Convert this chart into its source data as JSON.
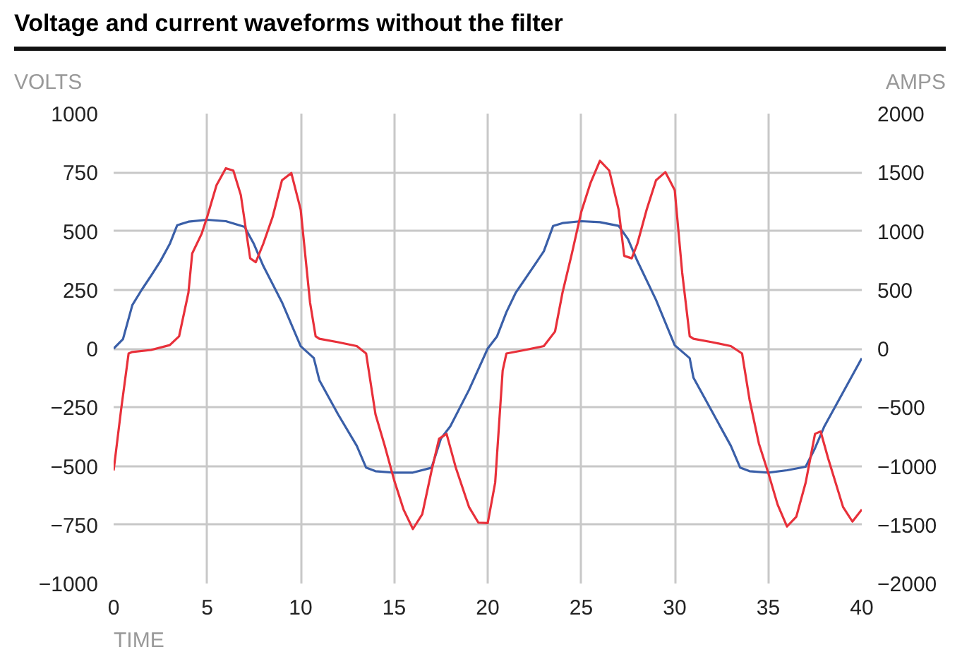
{
  "chart_data": {
    "type": "line",
    "title": "Voltage and current waveforms without the filter",
    "xlabel": "TIME",
    "ylabel": "VOLTS",
    "y2label": "AMPS",
    "xlim": [
      0,
      40
    ],
    "xticks": [
      0,
      5,
      10,
      15,
      20,
      25,
      30,
      35,
      40
    ],
    "ylim": [
      -1000,
      1000
    ],
    "yticks": [
      -1000,
      -750,
      -500,
      -250,
      0,
      250,
      500,
      750,
      1000
    ],
    "y2lim": [
      -2000,
      2000
    ],
    "y2ticks": [
      -2000,
      -1500,
      -1000,
      -500,
      0,
      500,
      1000,
      1500,
      2000
    ],
    "grid": true,
    "line_style": "solid",
    "marker": "none",
    "series": [
      {
        "color": "#3a5fa8",
        "x": [
          0,
          0.5,
          1,
          1.5,
          2,
          2.5,
          3,
          3.4,
          4,
          5,
          6,
          7,
          7.5,
          8,
          9,
          10,
          10.7,
          11,
          12,
          13,
          13.5,
          14,
          15,
          16,
          17,
          17.5,
          18,
          19,
          20,
          20.5,
          21,
          21.5,
          22,
          23,
          23.5,
          24,
          25,
          26,
          27,
          27.5,
          28,
          29,
          30,
          30.8,
          31,
          32,
          33,
          33.5,
          34,
          35,
          36,
          37,
          37.5,
          38,
          39,
          40
        ],
        "values": [
          0,
          40,
          185,
          250,
          310,
          372,
          445,
          525,
          540,
          548,
          542,
          518,
          445,
          352,
          197,
          10,
          -40,
          -135,
          -280,
          -414,
          -507,
          -522,
          -528,
          -528,
          -507,
          -383,
          -331,
          -176,
          0,
          52,
          155,
          238,
          296,
          414,
          522,
          534,
          542,
          538,
          522,
          466,
          373,
          207,
          14,
          -41,
          -124,
          -269,
          -414,
          -507,
          -522,
          -528,
          -518,
          -503,
          -424,
          -331,
          -186,
          -41
        ]
      },
      {
        "color": "#e8303a",
        "axis": "y2",
        "x": [
          0,
          0.4,
          0.8,
          1,
          2,
          3,
          3.5,
          4,
          4.2,
          4.7,
          5,
          5.5,
          6,
          6.4,
          6.8,
          7.3,
          7.6,
          8,
          8.5,
          9,
          9.5,
          10,
          10.5,
          10.8,
          11,
          12,
          13,
          13.5,
          14,
          14.5,
          15,
          15.5,
          16,
          16.5,
          17,
          17.4,
          17.8,
          18.3,
          19,
          19.5,
          20,
          20.4,
          20.8,
          21,
          22,
          23,
          23.6,
          24,
          24.5,
          25,
          25.5,
          26,
          26.5,
          27,
          27.3,
          27.7,
          28,
          28.5,
          29,
          29.5,
          30,
          30.4,
          30.8,
          31,
          32,
          33,
          33.6,
          34,
          34.5,
          35,
          35.5,
          36,
          36.5,
          37,
          37.5,
          37.8,
          38.2,
          39,
          39.5,
          40
        ],
        "values": [
          -1038,
          -519,
          -42,
          -29,
          -12,
          29,
          104,
          477,
          809,
          975,
          1120,
          1390,
          1535,
          1515,
          1307,
          768,
          735,
          892,
          1120,
          1432,
          1494,
          1183,
          394,
          104,
          83,
          54,
          21,
          -42,
          -560,
          -830,
          -1121,
          -1370,
          -1536,
          -1411,
          -1038,
          -768,
          -726,
          -1017,
          -1349,
          -1482,
          -1486,
          -1141,
          -187,
          -42,
          -12,
          21,
          145,
          477,
          809,
          1162,
          1411,
          1598,
          1515,
          1183,
          789,
          768,
          892,
          1183,
          1432,
          1502,
          1349,
          643,
          104,
          83,
          54,
          21,
          -42,
          -436,
          -809,
          -1058,
          -1328,
          -1515,
          -1432,
          -1141,
          -726,
          -706,
          -934,
          -1349,
          -1473,
          -1370
        ]
      }
    ]
  }
}
